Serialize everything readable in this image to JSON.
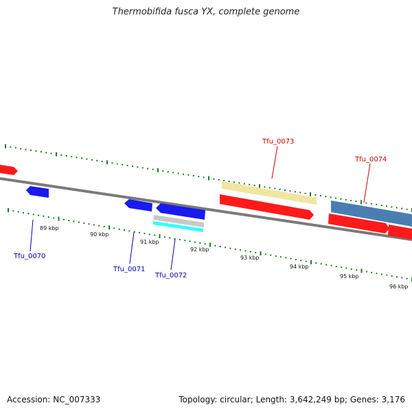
{
  "title": "Thermobifida fusca YX, complete genome",
  "footer": {
    "accession_label": "Accession:",
    "accession": "NC_007333",
    "topology_label": "Topology:",
    "topology": "circular",
    "length_label": "Length:",
    "length": "3,642,249 bp",
    "genes_label": "Genes:",
    "genes": "3,176"
  },
  "scale": {
    "unit": "kbp",
    "ticks": [
      "89 kbp",
      "90 kbp",
      "91 kbp",
      "92 kbp",
      "93 kbp",
      "94 kbp",
      "95 kbp",
      "96 kbp"
    ]
  },
  "colors": {
    "backbone": "#7a7a7a",
    "tick": "#1f7a1f",
    "forward_label": "#cc0000",
    "reverse_label": "#0000aa",
    "cds_red": "#ff1a1a",
    "cds_blue": "#1a1aee",
    "pale_yellow": "#f0e6a0",
    "steel_blue": "#4a7eb0",
    "cyan": "#33ffff",
    "grey": "#c8c8c8"
  },
  "genes": [
    {
      "label": "Tfu_0070",
      "strand": "reverse"
    },
    {
      "label": "Tfu_0071",
      "strand": "reverse"
    },
    {
      "label": "Tfu_0072",
      "strand": "reverse"
    },
    {
      "label": "Tfu_0073",
      "strand": "forward"
    },
    {
      "label": "Tfu_0074",
      "strand": "forward"
    }
  ]
}
